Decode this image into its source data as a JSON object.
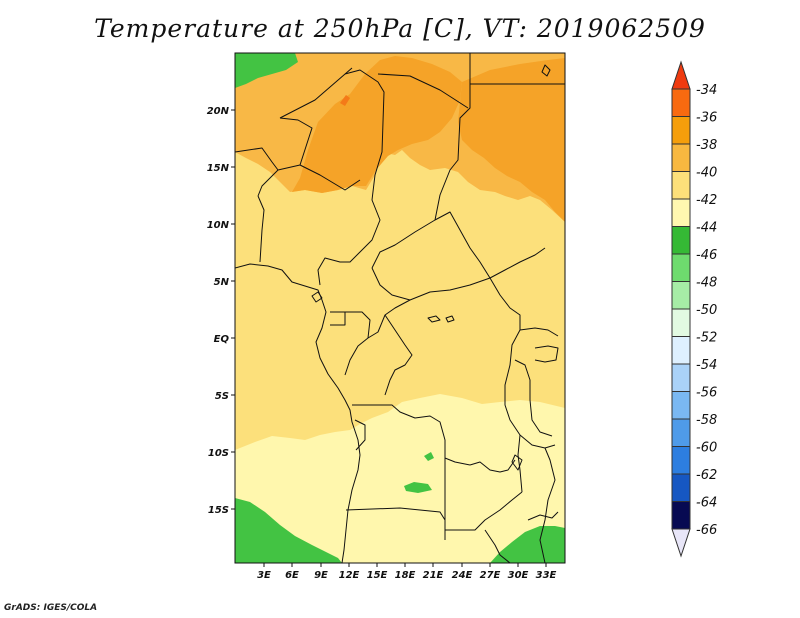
{
  "title": "Temperature at 250hPa [C], VT: 2019062509",
  "credit": "GrADS: IGES/COLA",
  "map": {
    "region": "Central Africa",
    "y_axis_labels": [
      "20N",
      "15N",
      "10N",
      "5N",
      "EQ",
      "5S",
      "10S",
      "15S"
    ],
    "x_axis_labels": [
      "3E",
      "6E",
      "9E",
      "12E",
      "15E",
      "18E",
      "21E",
      "24E",
      "27E",
      "30E",
      "33E"
    ],
    "colors": {
      "c_36_38": "#f5a328",
      "c_38_40": "#f8b846",
      "c_40_42": "#fce07b",
      "c_42_44": "#fff7ad",
      "c_44_46": "#43c343",
      "c_34_36": "#f47a18"
    }
  },
  "colorbar": {
    "labels": [
      "-34",
      "-36",
      "-38",
      "-40",
      "-42",
      "-44",
      "-46",
      "-48",
      "-50",
      "-52",
      "-54",
      "-56",
      "-58",
      "-60",
      "-62",
      "-64",
      "-66"
    ],
    "colors": [
      "#ef3a0f",
      "#f86a10",
      "#f59e0b",
      "#f8b840",
      "#fde07a",
      "#fff7b0",
      "#35b935",
      "#6edb6e",
      "#a6eca6",
      "#e2fae2",
      "#def0ff",
      "#aad2f8",
      "#7ab8f2",
      "#4f9be9",
      "#2d7ee0",
      "#1657c2",
      "#0a2f95",
      "#070a52",
      "#e8e6f8"
    ]
  }
}
